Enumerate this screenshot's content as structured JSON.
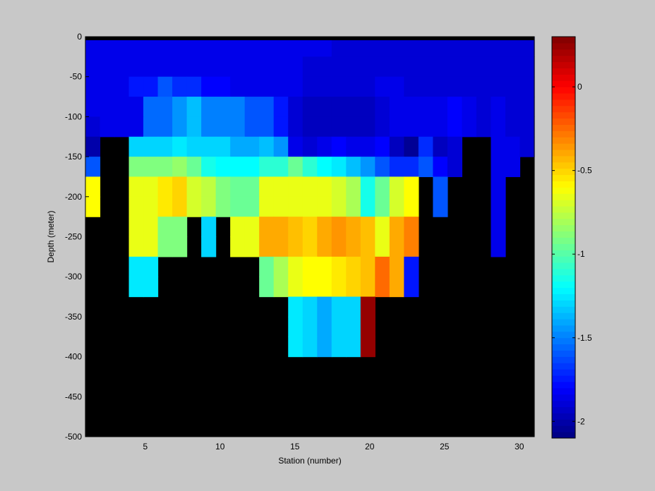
{
  "chart_data": {
    "type": "heatmap",
    "xlabel": "Station (number)",
    "ylabel": "Depth (meter)",
    "xlim": [
      1,
      31
    ],
    "ylim": [
      -500,
      0
    ],
    "xticks": [
      5,
      10,
      15,
      20,
      25,
      30
    ],
    "yticks": [
      0,
      -50,
      -100,
      -150,
      -200,
      -250,
      -300,
      -350,
      -400,
      -450,
      -500
    ],
    "colorbar": {
      "range": [
        -2.1,
        0.3
      ],
      "ticks": [
        0,
        -0.5,
        -1,
        -1.5,
        -2
      ],
      "colormap": "jet"
    },
    "background_color": "#000000",
    "figure_color": "#c8c8c8",
    "stations": [
      1,
      2,
      3,
      4,
      5,
      6,
      7,
      8,
      9,
      10,
      11,
      12,
      13,
      14,
      15,
      16,
      17,
      18,
      19,
      20,
      21,
      22,
      23,
      24,
      25,
      26,
      27,
      28,
      29,
      30,
      31
    ],
    "depths": [
      -25,
      -50,
      -75,
      -100,
      -125,
      -150,
      -175,
      -200,
      -225,
      -250,
      -275,
      -300,
      -325,
      -350,
      -375,
      -400,
      -425,
      -450,
      -475,
      -500
    ],
    "values": [
      [
        -1.85,
        -1.85,
        -1.85,
        -1.85,
        -1.85,
        -1.85,
        -1.85,
        -1.85,
        -1.85,
        -1.85,
        -1.85,
        -1.85,
        -1.85,
        -1.85,
        -1.85,
        -1.85,
        -1.85,
        -1.9,
        -1.9,
        -1.9,
        -1.9,
        -1.9,
        -1.9,
        -1.9,
        -1.9,
        -1.9,
        -1.9,
        -1.9,
        -1.9,
        -1.9,
        -1.9
      ],
      [
        -1.85,
        -1.85,
        -1.85,
        -1.85,
        -1.85,
        -1.85,
        -1.85,
        -1.85,
        -1.85,
        -1.85,
        -1.85,
        -1.85,
        -1.85,
        -1.85,
        -1.85,
        -1.9,
        -1.9,
        -1.9,
        -1.9,
        -1.9,
        -1.9,
        -1.9,
        -1.9,
        -1.9,
        -1.9,
        -1.9,
        -1.9,
        -1.9,
        -1.9,
        -1.9,
        -1.9
      ],
      [
        -1.85,
        -1.85,
        -1.85,
        -1.75,
        -1.75,
        -1.6,
        -1.7,
        -1.7,
        -1.8,
        -1.8,
        -1.85,
        -1.85,
        -1.85,
        -1.85,
        -1.85,
        -1.9,
        -1.9,
        -1.9,
        -1.9,
        -1.9,
        -1.85,
        -1.85,
        -1.9,
        -1.9,
        -1.9,
        -1.9,
        -1.9,
        -1.9,
        -1.9,
        -1.9,
        -1.9
      ],
      [
        -1.85,
        -1.85,
        -1.85,
        -1.85,
        -1.55,
        -1.55,
        -1.45,
        -1.35,
        -1.5,
        -1.5,
        -1.5,
        -1.6,
        -1.6,
        -1.75,
        -1.9,
        -1.95,
        -1.95,
        -1.95,
        -1.95,
        -1.95,
        -1.9,
        -1.85,
        -1.85,
        -1.85,
        -1.85,
        -1.8,
        -1.85,
        -1.9,
        -1.85,
        -1.9,
        -1.9
      ],
      [
        -1.9,
        -1.85,
        -1.85,
        -1.85,
        -1.55,
        -1.55,
        -1.45,
        -1.35,
        -1.5,
        -1.5,
        -1.5,
        -1.6,
        -1.6,
        -1.75,
        -1.9,
        -1.95,
        -1.95,
        -1.95,
        -1.95,
        -1.95,
        -1.9,
        -1.85,
        -1.85,
        -1.85,
        -1.85,
        -1.8,
        -1.85,
        -1.9,
        -1.85,
        -1.9,
        -1.9
      ],
      [
        -2.0,
        null,
        null,
        -1.3,
        -1.3,
        -1.3,
        -1.25,
        -1.3,
        -1.3,
        -1.3,
        -1.4,
        -1.4,
        -1.35,
        -1.45,
        -1.85,
        -1.9,
        -1.85,
        -1.8,
        -1.85,
        -1.85,
        -1.8,
        -1.95,
        -2.05,
        -1.7,
        -1.95,
        -1.9,
        null,
        null,
        -1.85,
        -1.85,
        -1.9
      ],
      [
        -1.6,
        null,
        null,
        -0.9,
        -0.9,
        -0.9,
        -0.85,
        -0.95,
        -1.15,
        -1.2,
        -1.2,
        -1.2,
        -1.1,
        -1.1,
        -0.95,
        -1.1,
        -1.2,
        -1.25,
        -1.35,
        -1.45,
        -1.6,
        -1.7,
        -1.7,
        -1.6,
        -1.8,
        -1.9,
        null,
        null,
        -1.85,
        -1.85,
        null
      ],
      [
        -0.6,
        null,
        null,
        -0.65,
        -0.65,
        -0.55,
        -0.5,
        -0.7,
        -0.75,
        -0.9,
        -0.95,
        -0.95,
        -0.65,
        -0.65,
        -0.65,
        -0.65,
        -0.65,
        -0.7,
        -0.8,
        -1.15,
        -0.95,
        -0.7,
        -0.6,
        null,
        -1.6,
        null,
        null,
        null,
        -1.85,
        null,
        null
      ],
      [
        -0.6,
        null,
        null,
        -0.65,
        -0.65,
        -0.55,
        -0.5,
        -0.7,
        -0.75,
        -0.9,
        -0.95,
        -0.95,
        -0.65,
        -0.65,
        -0.65,
        -0.65,
        -0.65,
        -0.7,
        -0.8,
        -1.15,
        -0.95,
        -0.7,
        -0.6,
        null,
        -1.6,
        null,
        null,
        null,
        -1.85,
        null,
        null
      ],
      [
        null,
        null,
        null,
        -0.65,
        -0.65,
        -0.9,
        -0.9,
        null,
        -1.3,
        null,
        -0.65,
        -0.65,
        -0.4,
        -0.4,
        -0.45,
        -0.5,
        -0.4,
        -0.35,
        -0.4,
        -0.45,
        -0.65,
        -0.4,
        -0.3,
        null,
        null,
        null,
        null,
        null,
        -1.85,
        null,
        null
      ],
      [
        null,
        null,
        null,
        -0.65,
        -0.65,
        -0.9,
        -0.9,
        null,
        -1.3,
        null,
        -0.65,
        -0.65,
        -0.4,
        -0.4,
        -0.45,
        -0.5,
        -0.4,
        -0.35,
        -0.4,
        -0.45,
        -0.65,
        -0.4,
        -0.3,
        null,
        null,
        null,
        null,
        null,
        -1.85,
        null,
        null
      ],
      [
        null,
        null,
        null,
        -1.25,
        -1.25,
        null,
        null,
        null,
        null,
        null,
        null,
        null,
        -0.95,
        -0.8,
        -0.65,
        -0.6,
        -0.6,
        -0.55,
        -0.5,
        -0.45,
        -0.25,
        -0.4,
        -1.75,
        null,
        null,
        null,
        null,
        null,
        null,
        null,
        null
      ],
      [
        null,
        null,
        null,
        -1.25,
        -1.25,
        null,
        null,
        null,
        null,
        null,
        null,
        null,
        -0.95,
        -0.8,
        -0.65,
        -0.6,
        -0.6,
        -0.55,
        -0.5,
        -0.45,
        -0.25,
        -0.4,
        -1.75,
        null,
        null,
        null,
        null,
        null,
        null,
        null,
        null
      ],
      [
        null,
        null,
        null,
        null,
        null,
        null,
        null,
        null,
        null,
        null,
        null,
        null,
        null,
        null,
        -1.25,
        -1.3,
        -1.4,
        -1.3,
        -1.3,
        0.25,
        null,
        null,
        null,
        null,
        null,
        null,
        null,
        null,
        null,
        null,
        null
      ],
      [
        null,
        null,
        null,
        null,
        null,
        null,
        null,
        null,
        null,
        null,
        null,
        null,
        null,
        null,
        -1.25,
        -1.3,
        -1.4,
        -1.3,
        -1.3,
        0.25,
        null,
        null,
        null,
        null,
        null,
        null,
        null,
        null,
        null,
        null,
        null
      ],
      [
        null,
        null,
        null,
        null,
        null,
        null,
        null,
        null,
        null,
        null,
        null,
        null,
        null,
        null,
        -1.25,
        -1.3,
        -1.4,
        -1.3,
        -1.3,
        0.25,
        null,
        null,
        null,
        null,
        null,
        null,
        null,
        null,
        null,
        null,
        null
      ],
      [
        null,
        null,
        null,
        null,
        null,
        null,
        null,
        null,
        null,
        null,
        null,
        null,
        null,
        null,
        null,
        null,
        null,
        null,
        null,
        null,
        null,
        null,
        null,
        null,
        null,
        null,
        null,
        null,
        null,
        null,
        null
      ],
      [
        null,
        null,
        null,
        null,
        null,
        null,
        null,
        null,
        null,
        null,
        null,
        null,
        null,
        null,
        null,
        null,
        null,
        null,
        null,
        null,
        null,
        null,
        null,
        null,
        null,
        null,
        null,
        null,
        null,
        null,
        null
      ],
      [
        null,
        null,
        null,
        null,
        null,
        null,
        null,
        null,
        null,
        null,
        null,
        null,
        null,
        null,
        null,
        null,
        null,
        null,
        null,
        null,
        null,
        null,
        null,
        null,
        null,
        null,
        null,
        null,
        null,
        null,
        null
      ],
      [
        null,
        null,
        null,
        null,
        null,
        null,
        null,
        null,
        null,
        null,
        null,
        null,
        null,
        null,
        null,
        null,
        null,
        null,
        null,
        null,
        null,
        null,
        null,
        null,
        null,
        null,
        null,
        null,
        null,
        null,
        null
      ]
    ]
  }
}
